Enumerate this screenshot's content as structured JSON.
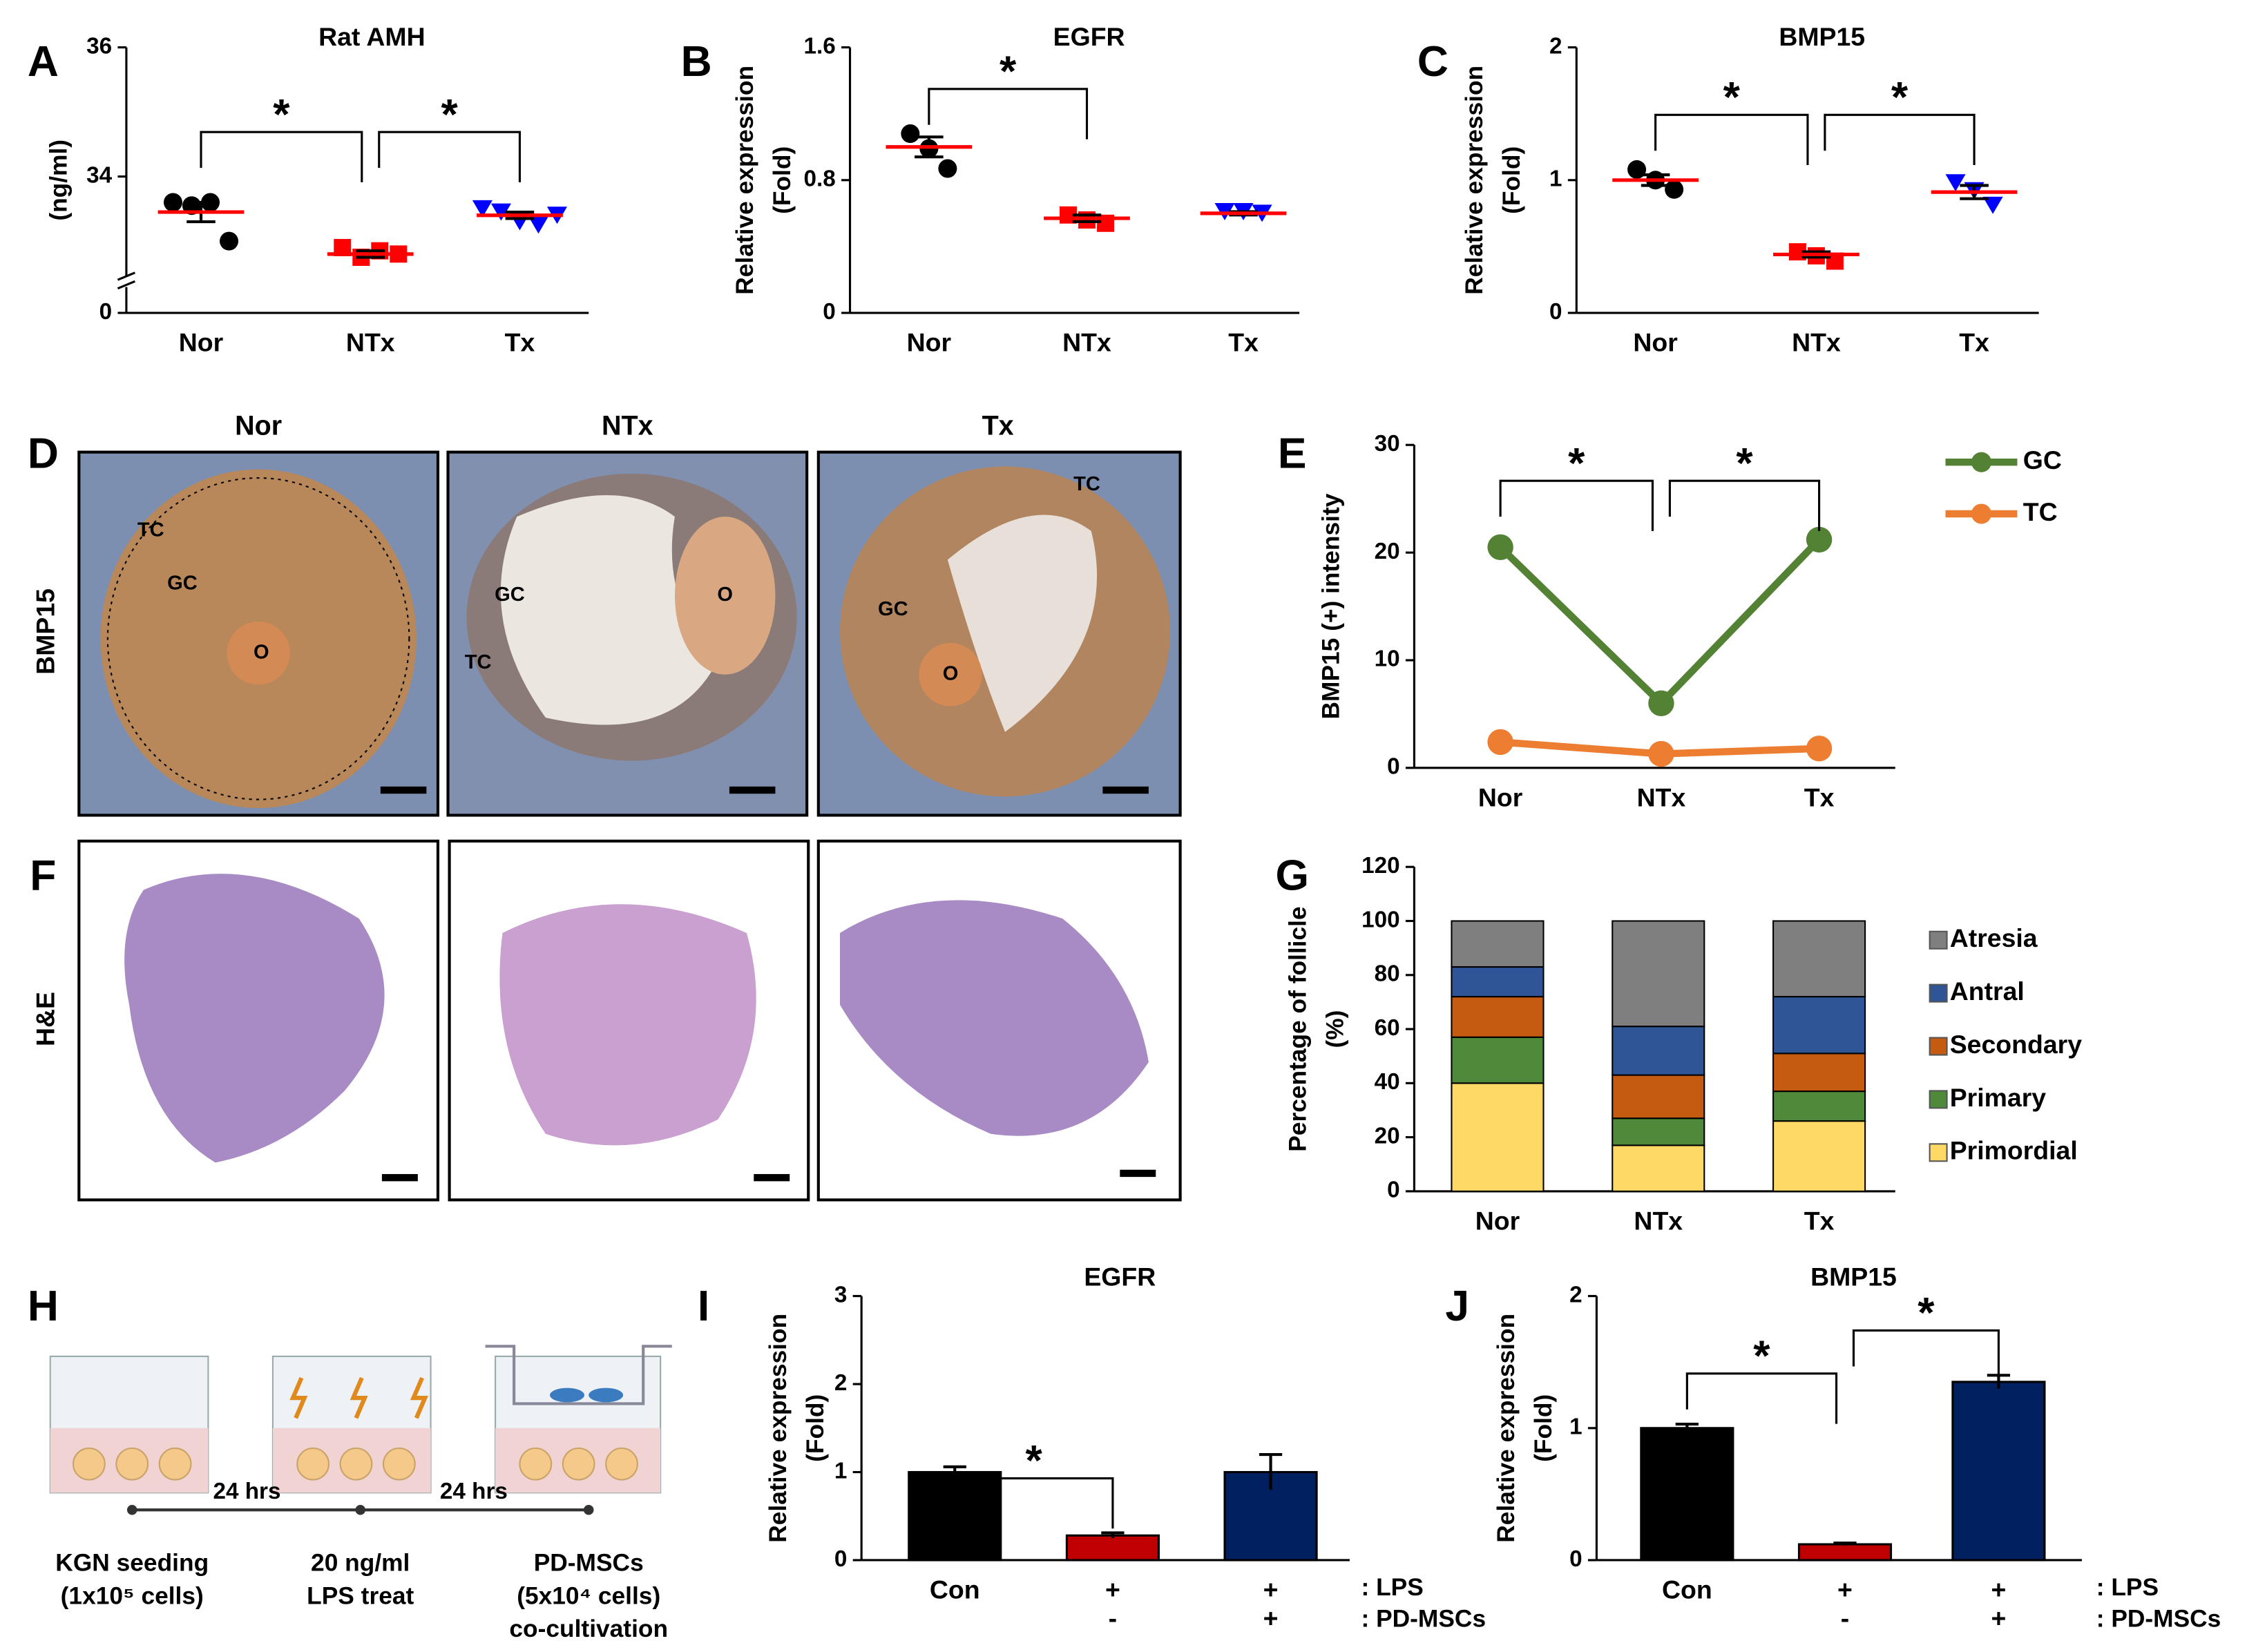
{
  "chart_data": [
    {
      "panel": "A",
      "type": "scatter",
      "title": "Rat AMH",
      "ylabel": [
        "(ng/ml)"
      ],
      "ylim": [
        0,
        36
      ],
      "ybreak": [
        0,
        32
      ],
      "yticks": [
        0,
        34,
        36
      ],
      "groups": [
        {
          "name": "Nor",
          "color": "#000000",
          "marker": "circle",
          "points": [
            33.6,
            33.55,
            33.6,
            33.0
          ],
          "mean": 33.45,
          "sem": 0.15
        },
        {
          "name": "NTx",
          "color": "#ff0000",
          "marker": "square",
          "points": [
            32.9,
            32.75,
            32.85,
            32.8
          ],
          "mean": 32.8,
          "sem": 0.05
        },
        {
          "name": "Tx",
          "color": "#0000ff",
          "marker": "triangle",
          "points": [
            33.5,
            33.45,
            33.3,
            33.25,
            33.4
          ],
          "mean": 33.4,
          "sem": 0.05
        }
      ],
      "mean_color": "#ff0000",
      "annotations": [
        {
          "from": 0,
          "to": 1,
          "label": "*"
        },
        {
          "from": 1,
          "to": 2,
          "label": "*"
        }
      ]
    },
    {
      "panel": "B",
      "type": "scatter",
      "title": "EGFR",
      "ylabel": [
        "Relative expression",
        "(Fold)"
      ],
      "ylim": [
        0,
        1.6
      ],
      "yticks": [
        0,
        0.8,
        1.6
      ],
      "groups": [
        {
          "name": "Nor",
          "color": "#000000",
          "marker": "circle",
          "points": [
            1.08,
            0.99,
            0.87
          ],
          "mean": 1.0,
          "sem": 0.06
        },
        {
          "name": "NTx",
          "color": "#ff0000",
          "marker": "square",
          "points": [
            0.59,
            0.56,
            0.54
          ],
          "mean": 0.57,
          "sem": 0.02
        },
        {
          "name": "Tx",
          "color": "#0000ff",
          "marker": "triangle",
          "points": [
            0.61,
            0.61,
            0.6
          ],
          "mean": 0.6,
          "sem": 0.01
        }
      ],
      "mean_color": "#ff0000",
      "annotations": [
        {
          "from": 0,
          "to": 1,
          "label": "*"
        }
      ]
    },
    {
      "panel": "C",
      "type": "scatter",
      "title": "BMP15",
      "ylabel": [
        "Relative expression",
        "(Fold)"
      ],
      "ylim": [
        0,
        2
      ],
      "yticks": [
        0,
        1,
        2
      ],
      "groups": [
        {
          "name": "Nor",
          "color": "#000000",
          "marker": "circle",
          "points": [
            1.08,
            1.0,
            0.93
          ],
          "mean": 1.0,
          "sem": 0.04
        },
        {
          "name": "NTx",
          "color": "#ff0000",
          "marker": "square",
          "points": [
            0.46,
            0.43,
            0.39
          ],
          "mean": 0.44,
          "sem": 0.02
        },
        {
          "name": "Tx",
          "color": "#0000ff",
          "marker": "triangle",
          "points": [
            0.98,
            0.92,
            0.81
          ],
          "mean": 0.91,
          "sem": 0.05
        }
      ],
      "mean_color": "#ff0000",
      "annotations": [
        {
          "from": 0,
          "to": 1,
          "label": "*"
        },
        {
          "from": 1,
          "to": 2,
          "label": "*"
        }
      ]
    },
    {
      "panel": "E",
      "type": "line",
      "ylabel": [
        "BMP15 (+) intensity"
      ],
      "ylim": [
        0,
        30
      ],
      "yticks": [
        0,
        10,
        20,
        30
      ],
      "categories": [
        "Nor",
        "NTx",
        "Tx"
      ],
      "series": [
        {
          "name": "GC",
          "color": "#548235",
          "values": [
            20.5,
            6,
            21.2
          ]
        },
        {
          "name": "TC",
          "color": "#ed7d31",
          "values": [
            2.4,
            1.3,
            1.8
          ]
        }
      ],
      "annotations": [
        {
          "from": 0,
          "to": 1,
          "label": "*"
        },
        {
          "from": 1,
          "to": 2,
          "label": "*"
        }
      ]
    },
    {
      "panel": "G",
      "type": "bar",
      "stacked": true,
      "ylabel": [
        "Percentage of follicle",
        "(%)"
      ],
      "ylim": [
        0,
        120
      ],
      "yticks": [
        0,
        20,
        40,
        60,
        80,
        100,
        120
      ],
      "categories": [
        "Nor",
        "NTx",
        "Tx"
      ],
      "series": [
        {
          "name": "Primordial",
          "color": "#ffd966",
          "values": [
            40,
            17,
            26
          ]
        },
        {
          "name": "Primary",
          "color": "#4e8a3a",
          "values": [
            17,
            10,
            11
          ]
        },
        {
          "name": "Secondary",
          "color": "#c55a11",
          "values": [
            15,
            16,
            14
          ]
        },
        {
          "name": "Antral",
          "color": "#2f5597",
          "values": [
            11,
            18,
            21
          ]
        },
        {
          "name": "Atresia",
          "color": "#7f7f7f",
          "values": [
            17,
            39,
            28
          ]
        }
      ]
    },
    {
      "panel": "I",
      "type": "bar",
      "title": "EGFR",
      "ylabel": [
        "Relative expression",
        "(Fold)"
      ],
      "ylim": [
        0,
        3
      ],
      "yticks": [
        0,
        1,
        2,
        3
      ],
      "categories": [
        "Con",
        "+",
        "+"
      ],
      "subcategories": [
        null,
        "-",
        "+"
      ],
      "row_labels": [
        ": LPS",
        ": PD-MSCs"
      ],
      "values": [
        1.0,
        0.28,
        1.0
      ],
      "errors": [
        0.06,
        0.03,
        0.2
      ],
      "colors": [
        "#000000",
        "#c00000",
        "#002060"
      ],
      "annotations": [
        {
          "from": 0,
          "to": 1,
          "label": "*"
        }
      ]
    },
    {
      "panel": "J",
      "type": "bar",
      "title": "BMP15",
      "ylabel": [
        "Relative expression",
        "(Fold)"
      ],
      "ylim": [
        0,
        2
      ],
      "yticks": [
        0,
        1,
        2
      ],
      "categories": [
        "Con",
        "+",
        "+"
      ],
      "subcategories": [
        null,
        "-",
        "+"
      ],
      "row_labels": [
        ": LPS",
        ": PD-MSCs"
      ],
      "values": [
        1.0,
        0.12,
        1.35
      ],
      "errors": [
        0.03,
        0.01,
        0.05
      ],
      "colors": [
        "#000000",
        "#c00000",
        "#002060"
      ],
      "annotations": [
        {
          "from": 0,
          "to": 1,
          "label": "*"
        },
        {
          "from": 1,
          "to": 2,
          "label": "*"
        }
      ]
    }
  ],
  "histology_bmp15": {
    "panel": "D",
    "row_label": "BMP15",
    "columns": [
      "Nor",
      "NTx",
      "Tx"
    ],
    "cell_labels": [
      [
        "TC",
        "GC",
        "O"
      ],
      [
        "GC",
        "O",
        "TC"
      ],
      [
        "TC",
        "GC",
        "O"
      ]
    ]
  },
  "histology_he": {
    "panel": "F",
    "row_label": "H&E"
  },
  "protocol": {
    "panel": "H",
    "intervals": [
      "24 hrs",
      "24 hrs"
    ],
    "steps": [
      [
        "KGN seeding",
        "(1x10⁵ cells)"
      ],
      [
        "20 ng/ml",
        "LPS treat"
      ],
      [
        "PD-MSCs",
        "(5x10⁴ cells)",
        "co-cultivation"
      ]
    ]
  }
}
